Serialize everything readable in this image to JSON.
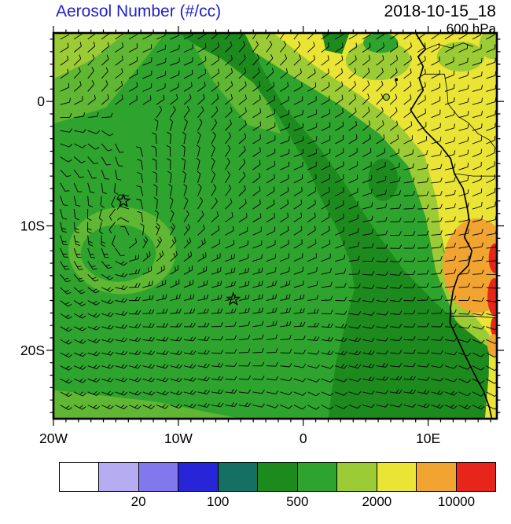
{
  "header": {
    "title": "Aerosol Number (#/cc)",
    "datetime": "2018-10-15_18",
    "level": "600 hPa",
    "title_color": "#2121cc"
  },
  "chart_data": {
    "type": "heatmap",
    "title": "Aerosol Number (#/cc)",
    "valid_datetime": "2018-10-15_18",
    "pressure_level": "600 hPa",
    "units": "#/cc",
    "overlay": "wind-barbs",
    "proj": {
      "lon_range": [
        -20,
        15.5
      ],
      "lat_range": [
        -25.5,
        5.5
      ]
    },
    "x_ticks": [
      {
        "lon": -20,
        "label": "20W"
      },
      {
        "lon": -10,
        "label": "10W"
      },
      {
        "lon": 0,
        "label": "0"
      },
      {
        "lon": 10,
        "label": "10E"
      }
    ],
    "y_ticks": [
      {
        "lat": 0,
        "label": "0"
      },
      {
        "lat": -10,
        "label": "10S"
      },
      {
        "lat": -20,
        "label": "20S"
      }
    ],
    "colorbar": {
      "colors": [
        "#ffffff",
        "#b6acf2",
        "#8278ee",
        "#2626d8",
        "#156f63",
        "#1d8a1d",
        "#2ea32e",
        "#9bcb35",
        "#eae435",
        "#f2a431",
        "#e8251a"
      ],
      "labels": [
        "20",
        "100",
        "500",
        "2000",
        "10000"
      ],
      "label_boundaries": [
        2,
        4,
        6,
        8,
        10
      ]
    },
    "palette": {
      "g": "#2ea32e",
      "dg": "#1d8a1d",
      "lg": "#9bcb35",
      "pg": "#5fb733",
      "y": "#eae435",
      "o": "#f2a431",
      "r": "#e8251a"
    },
    "base_color": "g",
    "regions": [
      {
        "c": "lg",
        "pts": [
          [
            -20,
            5.5
          ],
          [
            -14.2,
            5.5
          ],
          [
            -16.8,
            3.4
          ],
          [
            -20,
            1.8
          ]
        ]
      },
      {
        "c": "pg",
        "pts": [
          [
            -20,
            1.8
          ],
          [
            -16.8,
            3.4
          ],
          [
            -14.2,
            5.5
          ],
          [
            -11,
            5.5
          ],
          [
            -15.8,
            -0.5
          ],
          [
            -20,
            -1.8
          ]
        ]
      },
      {
        "c": "pg",
        "pts": [
          [
            -9.3,
            5.5
          ],
          [
            -6.8,
            5.5
          ],
          [
            -3.2,
            0.8
          ],
          [
            -1.8,
            -2.6
          ],
          [
            -4.4,
            -1.9
          ],
          [
            -7.2,
            1.6
          ]
        ]
      },
      {
        "c": "y",
        "pts": [
          [
            -5,
            5.5
          ],
          [
            15.5,
            5.5
          ],
          [
            15.5,
            -20
          ],
          [
            13,
            -17
          ],
          [
            11.5,
            -13
          ],
          [
            10.5,
            -8
          ],
          [
            9,
            -4
          ],
          [
            6,
            -1.5
          ],
          [
            2,
            0.8
          ],
          [
            -2,
            3.2
          ]
        ]
      },
      {
        "c": "lg",
        "pts": [
          [
            -5.2,
            5.5
          ],
          [
            -2.4,
            5.5
          ],
          [
            0.9,
            2.9
          ],
          [
            4.4,
            0.6
          ],
          [
            7.5,
            -1.7
          ],
          [
            9.7,
            -4.3
          ],
          [
            10.7,
            -8
          ],
          [
            11.2,
            -12
          ],
          [
            12.7,
            -16
          ],
          [
            15.5,
            -19.5
          ],
          [
            15.5,
            -21.2
          ],
          [
            12.2,
            -17.6
          ],
          [
            10.6,
            -13.6
          ],
          [
            9.8,
            -9.3
          ],
          [
            8.4,
            -5.2
          ],
          [
            6.1,
            -2.6
          ],
          [
            2.8,
            -0.2
          ],
          [
            -1.3,
            2.3
          ],
          [
            -4.3,
            4.2
          ]
        ]
      },
      {
        "c": "lg",
        "ellipse": [
          6,
          3.3,
          2.6,
          1.6
        ]
      },
      {
        "c": "g",
        "ellipse": [
          6.2,
          4.7,
          1.4,
          0.8
        ]
      },
      {
        "c": "lg",
        "ellipse": [
          12.6,
          3.6,
          1.9,
          1.2
        ]
      },
      {
        "c": "lg",
        "ellipse": [
          15.2,
          4.6,
          1.1,
          1.2
        ]
      },
      {
        "c": "dg",
        "pts": [
          [
            -10,
            5.5
          ],
          [
            -4.7,
            5.5
          ],
          [
            -3.2,
            2.5
          ],
          [
            -1.5,
            -0.5
          ],
          [
            1.2,
            -3.6
          ],
          [
            3.2,
            -6.4
          ],
          [
            4.8,
            -8.9
          ],
          [
            6.2,
            -11
          ],
          [
            8,
            -13.5
          ],
          [
            10.4,
            -16
          ],
          [
            12.6,
            -18
          ],
          [
            14.2,
            -19.3
          ],
          [
            15.5,
            -20.2
          ],
          [
            15.5,
            -25.5
          ],
          [
            2,
            -25.5
          ],
          [
            2.6,
            -21
          ],
          [
            3.6,
            -17
          ],
          [
            4.1,
            -15
          ],
          [
            3.8,
            -13
          ],
          [
            2.6,
            -10
          ],
          [
            1.5,
            -8
          ],
          [
            0.2,
            -5
          ],
          [
            -1.8,
            -1.5
          ],
          [
            -4,
            1.5
          ],
          [
            -6.5,
            3.4
          ],
          [
            -8.6,
            4.5
          ]
        ]
      },
      {
        "c": "dg",
        "pts": [
          [
            1.5,
            5.5
          ],
          [
            3.7,
            5.5
          ],
          [
            3.1,
            3.8
          ],
          [
            1.8,
            4.1
          ]
        ]
      },
      {
        "c": "dg",
        "ellipse": [
          6.4,
          -6.3,
          1.2,
          1.7
        ]
      },
      {
        "c": "pg",
        "ellipse": [
          -14.5,
          -12,
          4.3,
          3.5
        ]
      },
      {
        "c": "g",
        "ellipse": [
          -14.8,
          -12.2,
          3.0,
          2.3
        ]
      },
      {
        "c": "pg",
        "pts": [
          [
            -20,
            -23.2
          ],
          [
            -12,
            -24.1
          ],
          [
            -5,
            -25.5
          ],
          [
            -20,
            -25.5
          ]
        ]
      },
      {
        "c": "y",
        "pts": [
          [
            14.9,
            -18.4
          ],
          [
            15.5,
            -18.1
          ],
          [
            15.5,
            -25.5
          ],
          [
            14.55,
            -25.5
          ],
          [
            14.85,
            -22
          ]
        ]
      },
      {
        "c": "o",
        "ellipse": [
          13.9,
          -13.2,
          2.7,
          3.8
        ]
      },
      {
        "c": "r",
        "ellipse": [
          15.35,
          -12.6,
          0.5,
          1.2
        ]
      },
      {
        "c": "r",
        "ellipse": [
          15.3,
          -15.7,
          0.55,
          1.5
        ]
      },
      {
        "c": "r",
        "ellipse": [
          15.35,
          -18.1,
          0.35,
          0.8
        ]
      },
      {
        "c": "o",
        "ellipse": [
          15.25,
          -19.6,
          0.5,
          0.9
        ]
      }
    ],
    "coastline": [
      [
        9.0,
        5.5
      ],
      [
        9.8,
        4.2
      ],
      [
        9.2,
        3.6
      ],
      [
        9.6,
        2.8
      ],
      [
        9.3,
        1.8
      ],
      [
        9.6,
        0.9
      ],
      [
        9.2,
        0.3
      ],
      [
        8.6,
        -0.7
      ],
      [
        9.2,
        -1.6
      ],
      [
        9.8,
        -2.4
      ],
      [
        11.1,
        -3.7
      ],
      [
        11.8,
        -4.6
      ],
      [
        12.1,
        -5.8
      ],
      [
        12.8,
        -7.0
      ],
      [
        13.1,
        -8.4
      ],
      [
        13.3,
        -9.6
      ],
      [
        12.9,
        -10.9
      ],
      [
        13.5,
        -12.0
      ],
      [
        13.2,
        -13.2
      ],
      [
        12.4,
        -14.0
      ],
      [
        12.0,
        -15.2
      ],
      [
        11.8,
        -16.5
      ],
      [
        11.75,
        -17.8
      ],
      [
        12.3,
        -19.0
      ],
      [
        12.9,
        -20.3
      ],
      [
        13.5,
        -21.5
      ],
      [
        14.0,
        -22.5
      ],
      [
        14.45,
        -23.3
      ],
      [
        14.9,
        -24.6
      ],
      [
        15.1,
        -25.5
      ]
    ],
    "borders": [
      [
        [
          9.7,
          2.2
        ],
        [
          11.3,
          2.2
        ],
        [
          11.5,
          1.0
        ],
        [
          11.6,
          -0.2
        ]
      ],
      [
        [
          11.6,
          -0.2
        ],
        [
          12.4,
          -1.2
        ],
        [
          13.2,
          -1.7
        ],
        [
          14.0,
          -2.6
        ],
        [
          14.9,
          -3.1
        ],
        [
          15.5,
          -3.9
        ]
      ],
      [
        [
          12.1,
          -5.8
        ],
        [
          13.6,
          -6.0
        ],
        [
          15.5,
          -6.0
        ]
      ],
      [
        [
          11.75,
          -17.25
        ],
        [
          13.6,
          -17.25
        ],
        [
          15.5,
          -17.4
        ]
      ],
      [
        [
          9.8,
          4.2
        ],
        [
          10.8,
          4.6
        ],
        [
          11.8,
          4.3
        ],
        [
          12.8,
          4.7
        ],
        [
          13.6,
          4.4
        ]
      ]
    ],
    "islands": [
      {
        "lon": 6.65,
        "lat": 0.35,
        "r": 4,
        "filled": false
      },
      {
        "lon": 7.45,
        "lat": 1.75,
        "r": 1.5,
        "filled": true
      }
    ],
    "markers": [
      {
        "type": "star",
        "lon": -14.4,
        "lat": -8.0
      },
      {
        "type": "star",
        "lon": -5.6,
        "lat": -15.9
      }
    ],
    "wind": {
      "style": "barbs",
      "background_u": -2.2,
      "meridional_shear": -0.08,
      "vortex": {
        "lon": -14.5,
        "lat": -12,
        "strength": 18,
        "core": 6
      },
      "grid_dlon": 1.1,
      "grid_dlat": 1.05
    }
  }
}
